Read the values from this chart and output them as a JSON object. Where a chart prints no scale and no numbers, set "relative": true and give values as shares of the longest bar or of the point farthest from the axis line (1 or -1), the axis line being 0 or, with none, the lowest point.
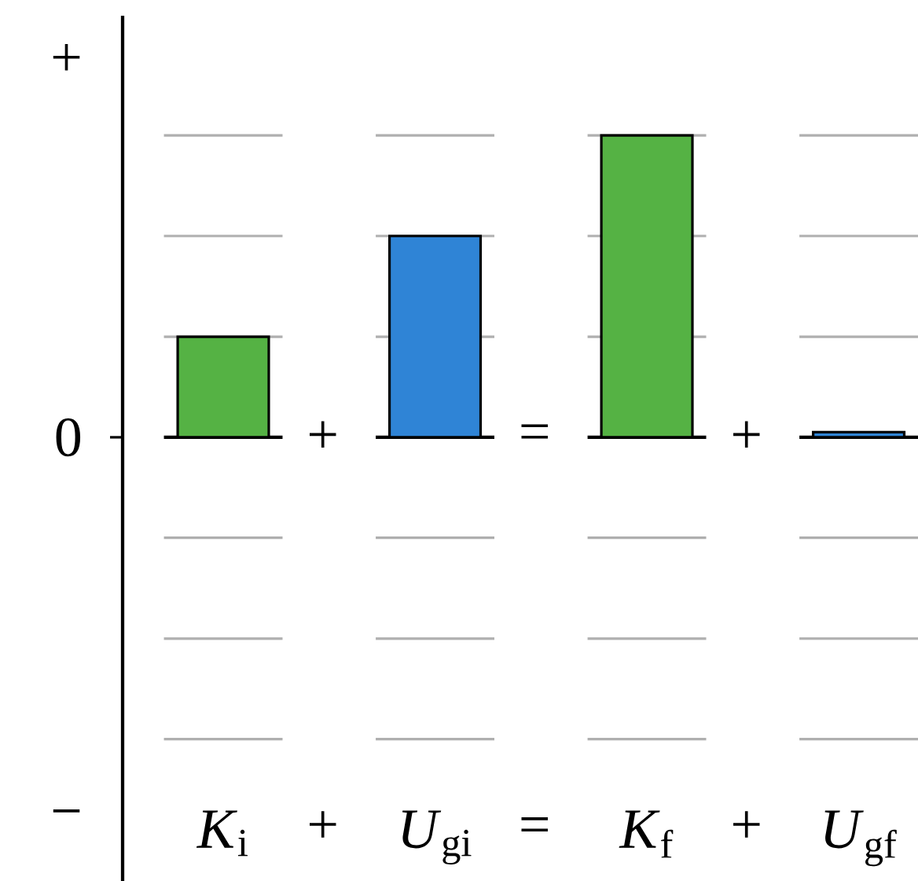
{
  "chart_data": {
    "type": "bar",
    "categories": [
      "*K*$_{i}$",
      "*U*$_{gi}$",
      "*K*$_{f}$",
      "*U*$_{gf}$"
    ],
    "values": [
      0.333,
      0.667,
      1,
      0.017
    ],
    "colors": [
      "#55b244",
      "#2f84d6",
      "#55b244",
      "#2f84d6"
    ],
    "relative": true,
    "ref_lines": [
      {
        "axis": "y",
        "value": 1,
        "color": "#afafaf"
      },
      {
        "axis": "y",
        "value": 0.667,
        "color": "#afafaf"
      },
      {
        "axis": "y",
        "value": 0.333,
        "color": "#afafaf"
      },
      {
        "axis": "y",
        "value": -0.333,
        "color": "#afafaf"
      },
      {
        "axis": "y",
        "value": -0.667,
        "color": "#afafaf"
      },
      {
        "axis": "y",
        "value": -1,
        "color": "#afafaf"
      }
    ],
    "annotations": [
      "+",
      "0",
      "−",
      "+",
      "=",
      "+",
      "+",
      "=",
      "+"
    ]
  }
}
